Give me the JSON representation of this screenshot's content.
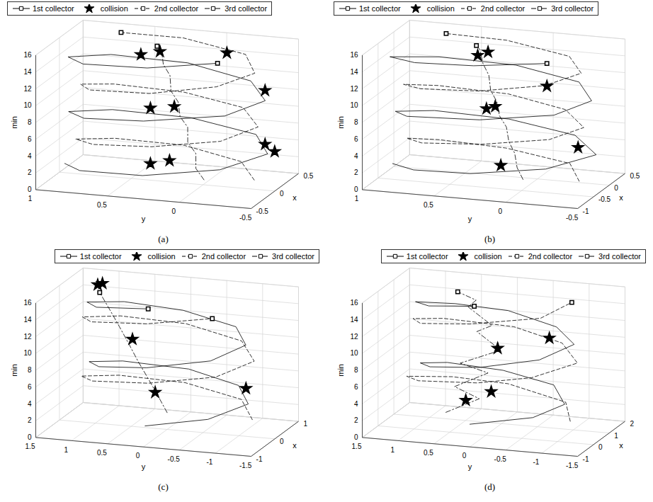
{
  "chart_data": [
    {
      "type": "line3d",
      "title": "(a)",
      "xlabel": "x",
      "ylabel": "y",
      "zlabel": "min",
      "xlim": [
        -0.5,
        0.5
      ],
      "ylim": [
        -0.5,
        1
      ],
      "zlim": [
        0,
        16
      ],
      "xticks": [
        -0.5,
        0,
        0.5
      ],
      "yticks": [
        -0.5,
        0,
        0.5,
        1
      ],
      "zticks": [
        0,
        2,
        4,
        6,
        8,
        10,
        12,
        14,
        16
      ],
      "grid": true,
      "legend": "upper left",
      "series": [
        {
          "name": "1st collector",
          "type": "line",
          "color": "#000000",
          "line_style": "solid",
          "marker": "square",
          "x": [
            0.02,
            -0.3,
            -0.46,
            -0.31,
            0.03,
            0.33,
            0.44,
            0.3,
            -0.02,
            -0.33,
            -0.44,
            -0.3,
            0.01,
            0.31,
            0.46,
            0.33,
            0.0,
            -0.32,
            -0.45,
            -0.3
          ],
          "y": [
            0.97,
            0.76,
            0.27,
            -0.22,
            -0.44,
            -0.26,
            0.23,
            0.73,
            0.93,
            0.72,
            0.27,
            -0.25,
            -0.43,
            -0.23,
            0.26,
            0.75,
            0.94,
            0.73,
            0.24,
            -0.2
          ],
          "z": [
            1.0,
            1.8,
            2.6,
            3.4,
            4.2,
            5.0,
            5.8,
            6.6,
            7.4,
            8.2,
            9.0,
            9.8,
            10.6,
            11.4,
            12.2,
            13.0,
            13.8,
            14.6,
            15.4,
            16.0
          ]
        },
        {
          "name": "collision",
          "type": "scatter",
          "color": "#000000",
          "marker": "star",
          "x": [
            -0.05,
            0.05,
            0.3,
            0.4,
            -0.05,
            0.0,
            0.4,
            -0.1,
            0.0,
            0.2
          ],
          "y": [
            0.35,
            0.25,
            -0.4,
            -0.3,
            0.35,
            0.2,
            -0.3,
            0.4,
            0.3,
            -0.1
          ],
          "z": [
            2.2,
            2.3,
            3.3,
            3.6,
            8.8,
            9.0,
            10.0,
            15.3,
            15.4,
            15.0
          ]
        },
        {
          "name": "2nd collector",
          "type": "line",
          "color": "#000000",
          "line_style": "dashed",
          "marker": "square",
          "x": [
            0.02,
            0.29,
            0.41,
            0.26,
            -0.02,
            -0.29,
            -0.39,
            -0.27,
            0.01,
            0.3,
            0.39,
            0.27,
            0.02,
            -0.28,
            -0.41,
            -0.26,
            0.0,
            0.29,
            0.4,
            0.27
          ],
          "y": [
            -0.35,
            -0.17,
            0.27,
            0.7,
            0.88,
            0.67,
            0.23,
            -0.21,
            -0.38,
            -0.18,
            0.26,
            0.71,
            0.86,
            0.7,
            0.24,
            -0.18,
            -0.36,
            -0.2,
            0.27,
            0.66
          ],
          "z": [
            1.0,
            1.8,
            2.6,
            3.4,
            4.2,
            5.0,
            5.8,
            6.6,
            7.4,
            8.2,
            9.0,
            9.8,
            10.6,
            11.4,
            12.2,
            13.0,
            13.8,
            14.6,
            15.4,
            16.0
          ]
        },
        {
          "name": "3rd collector",
          "type": "line",
          "color": "#000000",
          "line_style": "dashdot",
          "marker": "square",
          "x": [
            0.02,
            -0.03,
            0.03,
            -0.02,
            0.04,
            -0.03,
            0.02,
            -0.04,
            0.03,
            -0.02,
            0.03,
            0.0
          ],
          "y": [
            0.0,
            0.04,
            0.06,
            0.1,
            0.12,
            0.15,
            0.18,
            0.21,
            0.24,
            0.27,
            0.3,
            0.32
          ],
          "z": [
            0.5,
            2,
            3.5,
            5,
            6.5,
            8,
            9.5,
            11,
            12.5,
            14,
            15.5,
            16
          ]
        }
      ]
    },
    {
      "type": "line3d",
      "title": "(b)",
      "xlabel": "x",
      "ylabel": "y",
      "zlabel": "min",
      "xlim": [
        -1,
        0.5
      ],
      "ylim": [
        -0.5,
        1
      ],
      "zlim": [
        0,
        16
      ],
      "xticks": [
        -1,
        -0.5,
        0,
        0.5
      ],
      "yticks": [
        -0.5,
        0,
        0.5,
        1
      ],
      "zticks": [
        0,
        2,
        4,
        6,
        8,
        10,
        12,
        14,
        16
      ],
      "grid": true,
      "legend": "upper left",
      "series": [
        {
          "name": "1st collector",
          "type": "line",
          "color": "#000000",
          "line_style": "solid",
          "marker": "square",
          "x": [
            -0.22,
            -0.65,
            -0.86,
            -0.69,
            -0.23,
            0.19,
            0.33,
            0.15,
            -0.27,
            -0.68,
            -0.83,
            -0.66,
            -0.24,
            0.18,
            0.36,
            0.16,
            -0.26,
            -0.66,
            -0.84,
            -0.7
          ],
          "y": [
            0.96,
            0.72,
            0.28,
            -0.21,
            -0.46,
            -0.22,
            0.27,
            0.75,
            0.93,
            0.76,
            0.22,
            -0.26,
            -0.43,
            -0.25,
            0.23,
            0.72,
            0.97,
            0.71,
            0.26,
            -0.22
          ],
          "z": [
            1.0,
            1.8,
            2.6,
            3.4,
            4.2,
            5.0,
            5.8,
            6.6,
            7.4,
            8.2,
            9.0,
            9.8,
            10.6,
            11.4,
            12.2,
            13.0,
            13.8,
            14.6,
            15.4,
            16.0
          ]
        },
        {
          "name": "collision",
          "type": "scatter",
          "color": "#000000",
          "marker": "star",
          "x": [
            -0.25,
            0.15,
            -0.25,
            -0.2,
            0.3,
            -0.3,
            -0.2
          ],
          "y": [
            0.2,
            -0.25,
            0.3,
            0.25,
            0.0,
            0.35,
            0.3
          ],
          "z": [
            2.0,
            3.7,
            8.6,
            8.8,
            10.2,
            15.0,
            15.2
          ]
        },
        {
          "name": "2nd collector",
          "type": "line",
          "color": "#000000",
          "line_style": "dashed",
          "marker": "square",
          "x": [
            -0.27,
            0.12,
            0.24,
            0.08,
            -0.23,
            -0.62,
            -0.73,
            -0.58,
            -0.26,
            0.11,
            0.26,
            0.09,
            -0.24,
            -0.61,
            -0.76,
            -0.59,
            -0.25,
            0.1,
            0.25,
            0.11
          ],
          "y": [
            -0.35,
            -0.2,
            0.27,
            0.7,
            0.86,
            0.67,
            0.23,
            -0.21,
            -0.38,
            -0.17,
            0.26,
            0.71,
            0.88,
            0.68,
            0.24,
            -0.18,
            -0.36,
            -0.2,
            0.27,
            0.66
          ],
          "z": [
            1.0,
            1.8,
            2.6,
            3.4,
            4.2,
            5.0,
            5.8,
            6.6,
            7.4,
            8.2,
            9.0,
            9.8,
            10.6,
            11.4,
            12.2,
            13.0,
            13.8,
            14.6,
            15.4,
            16.0
          ]
        },
        {
          "name": "3rd collector",
          "type": "line",
          "color": "#000000",
          "line_style": "dashdot",
          "marker": "square",
          "x": [
            -0.23,
            -0.28,
            -0.22,
            -0.27,
            -0.21,
            -0.29,
            -0.24,
            -0.3,
            -0.22,
            -0.27,
            -0.23,
            -0.25
          ],
          "y": [
            0.05,
            0.08,
            0.11,
            0.14,
            0.17,
            0.2,
            0.23,
            0.26,
            0.29,
            0.32,
            0.35,
            0.37
          ],
          "z": [
            0.5,
            2,
            3.5,
            5,
            6.5,
            8,
            9.5,
            11,
            12.5,
            14,
            15.5,
            16
          ]
        }
      ]
    },
    {
      "type": "line3d",
      "title": "(c)",
      "xlabel": "x",
      "ylabel": "y",
      "zlabel": "min",
      "xlim": [
        -1,
        1
      ],
      "ylim": [
        -1.5,
        1.5
      ],
      "zlim": [
        0,
        16
      ],
      "xticks": [
        -1,
        0,
        1
      ],
      "yticks": [
        -1.5,
        -1,
        -0.5,
        0,
        0.5,
        1,
        1.5
      ],
      "zticks": [
        0,
        2,
        4,
        6,
        8,
        10,
        12,
        14,
        16
      ],
      "grid": true,
      "legend": "upper right",
      "series": [
        {
          "name": "1st collector",
          "type": "line",
          "color": "#000000",
          "line_style": "solid",
          "marker": "square",
          "x": [
            -0.78,
            -0.55,
            0.03,
            0.59,
            0.82,
            0.55,
            -0.02,
            -0.58,
            -0.81,
            -0.56,
            0.02,
            0.57,
            0.79,
            0.58,
            0.01,
            -0.56,
            -0.8
          ],
          "y": [
            0.05,
            -0.75,
            -1.12,
            -0.8,
            -0.03,
            0.8,
            1.08,
            0.76,
            0.02,
            -0.79,
            -1.09,
            -0.77,
            0.04,
            0.79,
            1.12,
            0.8,
            0.0
          ],
          "z": [
            2.0,
            2.9,
            3.8,
            4.6,
            5.5,
            6.4,
            7.3,
            8.1,
            9.0,
            9.9,
            10.8,
            11.6,
            12.5,
            13.4,
            14.3,
            15.1,
            16.0
          ]
        },
        {
          "name": "collision",
          "type": "scatter",
          "color": "#000000",
          "marker": "star",
          "x": [
            -0.05,
            0.6,
            -0.1,
            0.3,
            0.25
          ],
          "y": [
            0.15,
            -0.9,
            0.45,
            1.0,
            1.05
          ],
          "z": [
            4.4,
            4.3,
            10.6,
            16.0,
            15.9
          ]
        },
        {
          "name": "2nd collector",
          "type": "line",
          "color": "#000000",
          "line_style": "dashed",
          "marker": "square",
          "x": [
            0.02,
            0.62,
            0.84,
            0.58,
            -0.02,
            -0.61,
            -0.86,
            -0.59,
            0.01,
            0.6,
            0.85,
            0.61,
            0.0,
            -0.6,
            -0.84,
            -0.58
          ],
          "y": [
            -1.18,
            -0.83,
            0.03,
            0.86,
            1.19,
            0.84,
            -0.02,
            -0.87,
            -1.21,
            -0.84,
            0.02,
            0.85,
            1.18,
            0.86,
            0.01,
            -0.82
          ],
          "z": [
            2.0,
            2.9,
            3.8,
            4.6,
            5.5,
            6.4,
            7.3,
            8.1,
            9.0,
            9.9,
            10.8,
            11.6,
            12.5,
            13.4,
            14.3,
            15.0
          ]
        },
        {
          "name": "3rd collector",
          "type": "line",
          "color": "#000000",
          "line_style": "dashdot",
          "marker": "square",
          "x": [
            0.0,
            -0.03,
            -0.05,
            -0.08,
            -0.1,
            -0.13,
            -0.15,
            -0.18
          ],
          "y": [
            0.0,
            0.12,
            0.25,
            0.38,
            0.5,
            0.62,
            0.75,
            0.88
          ],
          "z": [
            2,
            4,
            6,
            8,
            10,
            12,
            14,
            16
          ]
        }
      ]
    },
    {
      "type": "line3d",
      "title": "(d)",
      "xlabel": "x",
      "ylabel": "y",
      "zlabel": "min",
      "xlim": [
        -1,
        2
      ],
      "ylim": [
        -1.5,
        1.5
      ],
      "zlim": [
        0,
        16
      ],
      "xticks": [
        -1,
        0,
        1,
        2
      ],
      "yticks": [
        -1.5,
        -1,
        -0.5,
        0,
        0.5,
        1,
        1.5
      ],
      "zticks": [
        0,
        2,
        4,
        6,
        8,
        10,
        12,
        14,
        16
      ],
      "grid": true,
      "legend": "upper right",
      "series": [
        {
          "name": "1st collector",
          "type": "line",
          "color": "#000000",
          "line_style": "solid",
          "marker": "square",
          "x": [
            -0.55,
            -0.2,
            0.45,
            1.35,
            1.55,
            1.2,
            0.4,
            -0.35,
            -0.65,
            -0.25,
            0.6,
            1.3,
            1.65,
            1.25,
            0.55,
            -0.2,
            -0.5
          ],
          "y": [
            0.1,
            -0.7,
            -1.0,
            -0.65,
            0.1,
            0.8,
            1.0,
            0.7,
            -0.05,
            -0.8,
            -1.1,
            -0.7,
            0.05,
            0.7,
            1.1,
            0.75,
            0.05
          ],
          "z": [
            2.0,
            2.9,
            3.8,
            4.6,
            5.5,
            6.4,
            7.3,
            8.1,
            9.0,
            9.9,
            10.8,
            11.6,
            12.5,
            13.4,
            14.3,
            15.1,
            16.0
          ]
        },
        {
          "name": "collision",
          "type": "scatter",
          "color": "#000000",
          "marker": "star",
          "x": [
            0.1,
            0.8,
            0.3,
            1.3
          ],
          "y": [
            0.3,
            0.1,
            -0.1,
            -0.6
          ],
          "z": [
            3.8,
            4.0,
            10.0,
            10.2
          ]
        },
        {
          "name": "2nd collector",
          "type": "line",
          "color": "#000000",
          "line_style": "dashed",
          "marker": "square",
          "x": [
            0.35,
            1.2,
            1.65,
            1.3,
            0.45,
            -0.4,
            -0.75,
            -0.5,
            0.35,
            1.2,
            1.55,
            1.2,
            0.4,
            -0.5,
            -0.8,
            -0.4,
            0.45
          ],
          "y": [
            -1.1,
            -0.85,
            0.05,
            0.75,
            1.2,
            0.85,
            -0.05,
            -0.75,
            -1.2,
            -0.8,
            -0.05,
            0.85,
            1.1,
            0.8,
            0.05,
            -0.85,
            -1.1
          ],
          "z": [
            2.0,
            2.9,
            3.8,
            4.6,
            5.5,
            6.4,
            7.3,
            8.1,
            9.0,
            9.9,
            10.8,
            11.6,
            12.5,
            13.4,
            14.3,
            15.1,
            16.0
          ]
        },
        {
          "name": "3rd collector",
          "type": "line",
          "color": "#000000",
          "line_style": "dashdot",
          "marker": "square",
          "x": [
            0.2,
            0.5,
            0.3,
            0.6,
            0.2,
            0.5,
            0.8,
            0.4,
            0.7,
            0.3,
            0.5
          ],
          "y": [
            0.6,
            0.2,
            0.5,
            0.1,
            0.4,
            -0.1,
            0.3,
            0.0,
            0.4,
            0.2,
            0.5
          ],
          "z": [
            2,
            3.5,
            5,
            6.5,
            8,
            9.5,
            11,
            12.5,
            14,
            15.5,
            16
          ]
        }
      ]
    }
  ]
}
